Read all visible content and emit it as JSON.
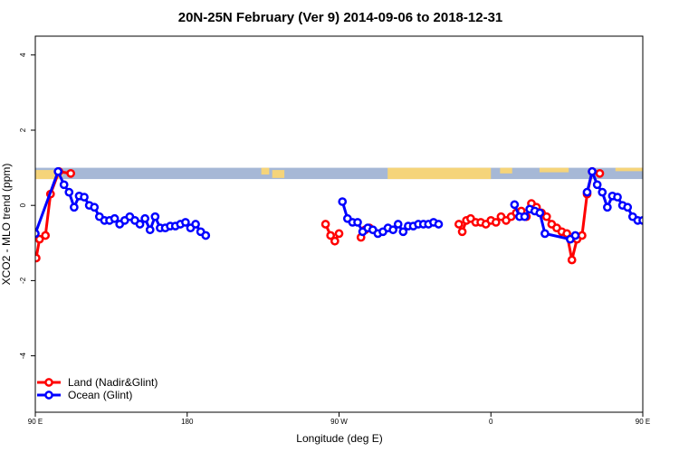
{
  "chart_data": {
    "type": "line",
    "title": "20N-25N February (Ver 9)   2014-09-06 to 2018-12-31",
    "xlabel": "Longitude (deg E)",
    "ylabel": "XCO2 - MLO trend (ppm)",
    "xlim": [
      90,
      450
    ],
    "ylim": [
      -5.5,
      4.5
    ],
    "x_ticks": [
      {
        "value": 90,
        "label": "90 E"
      },
      {
        "value": 180,
        "label": "180"
      },
      {
        "value": 270,
        "label": "90 W"
      },
      {
        "value": 360,
        "label": "0"
      },
      {
        "value": 450,
        "label": "90 E"
      },
      {
        "value": 540,
        "label": "180"
      }
    ],
    "y_ticks": [
      {
        "value": -4,
        "label": "-4"
      },
      {
        "value": -2,
        "label": "-2"
      },
      {
        "value": 0,
        "label": "0"
      },
      {
        "value": 2,
        "label": "2"
      },
      {
        "value": 4,
        "label": "4"
      }
    ],
    "legend_position": "bottom-left",
    "map_strip": {
      "ymin": 0.7,
      "ymax": 1.0,
      "ocean_color": "#a6b8d6",
      "land_color": "#f5d47a"
    },
    "series": [
      {
        "name": "Land (Nadir&Glint)",
        "color": "#ff0000",
        "segments": [
          [
            [
              90.5,
              -1.4
            ],
            [
              92.5,
              -0.9
            ],
            [
              96,
              -0.8
            ],
            [
              99,
              0.3
            ],
            [
              104,
              0.9
            ],
            [
              111,
              0.85
            ]
          ],
          [
            [
              262,
              -0.5
            ],
            [
              265,
              -0.8
            ],
            [
              267.5,
              -0.95
            ],
            [
              270,
              -0.75
            ]
          ],
          [
            [
              283,
              -0.85
            ],
            [
              285.5,
              -0.65
            ],
            [
              288,
              -0.6
            ]
          ],
          [
            [
              341,
              -0.5
            ],
            [
              343,
              -0.7
            ],
            [
              345.5,
              -0.4
            ],
            [
              348,
              -0.35
            ],
            [
              351,
              -0.45
            ],
            [
              354,
              -0.45
            ],
            [
              357,
              -0.5
            ],
            [
              360,
              -0.4
            ],
            [
              363,
              -0.45
            ],
            [
              366,
              -0.3
            ],
            [
              369,
              -0.4
            ],
            [
              372,
              -0.3
            ],
            [
              375,
              -0.2
            ],
            [
              378,
              -0.15
            ],
            [
              381,
              -0.3
            ],
            [
              384,
              0.05
            ],
            [
              387,
              -0.05
            ],
            [
              390,
              -0.2
            ],
            [
              393,
              -0.3
            ],
            [
              396,
              -0.5
            ],
            [
              399,
              -0.6
            ],
            [
              402,
              -0.7
            ],
            [
              405,
              -0.75
            ],
            [
              408,
              -1.45
            ],
            [
              411,
              -0.9
            ],
            [
              414,
              -0.8
            ],
            [
              417,
              0.3
            ],
            [
              420,
              0.9
            ],
            [
              424.5,
              0.85
            ]
          ]
        ]
      },
      {
        "name": "Ocean (Glint)",
        "color": "#0000ff",
        "segments": [
          [
            [
              90,
              -0.75
            ],
            [
              103.5,
              0.9
            ],
            [
              107,
              0.55
            ],
            [
              110,
              0.35
            ],
            [
              113,
              -0.05
            ],
            [
              116,
              0.25
            ],
            [
              119,
              0.22
            ],
            [
              122,
              0.0
            ],
            [
              125,
              -0.05
            ],
            [
              128,
              -0.3
            ],
            [
              131,
              -0.4
            ],
            [
              134,
              -0.4
            ],
            [
              137,
              -0.35
            ],
            [
              140,
              -0.5
            ],
            [
              143,
              -0.4
            ],
            [
              146,
              -0.3
            ],
            [
              149,
              -0.4
            ],
            [
              152,
              -0.5
            ],
            [
              155,
              -0.35
            ],
            [
              158,
              -0.65
            ],
            [
              161,
              -0.3
            ],
            [
              164,
              -0.6
            ],
            [
              167,
              -0.6
            ],
            [
              170,
              -0.55
            ],
            [
              173,
              -0.55
            ],
            [
              176,
              -0.5
            ],
            [
              179,
              -0.45
            ],
            [
              182,
              -0.6
            ],
            [
              185,
              -0.5
            ],
            [
              188,
              -0.7
            ],
            [
              191,
              -0.8
            ]
          ],
          [
            [
              272,
              0.1
            ],
            [
              275,
              -0.35
            ],
            [
              278,
              -0.45
            ],
            [
              281,
              -0.45
            ],
            [
              284,
              -0.7
            ],
            [
              287,
              -0.6
            ],
            [
              290,
              -0.65
            ],
            [
              293,
              -0.75
            ],
            [
              296,
              -0.7
            ],
            [
              299,
              -0.6
            ],
            [
              302,
              -0.65
            ],
            [
              305,
              -0.5
            ],
            [
              308,
              -0.7
            ],
            [
              311,
              -0.55
            ],
            [
              314,
              -0.55
            ],
            [
              317,
              -0.5
            ],
            [
              320,
              -0.5
            ],
            [
              323,
              -0.5
            ],
            [
              326,
              -0.45
            ],
            [
              329,
              -0.5
            ]
          ],
          [
            [
              374,
              0.02
            ],
            [
              377,
              -0.3
            ],
            [
              380,
              -0.3
            ],
            [
              383,
              -0.1
            ],
            [
              386,
              -0.15
            ],
            [
              389,
              -0.2
            ],
            [
              392,
              -0.75
            ],
            [
              407,
              -0.9
            ],
            [
              410,
              -0.8
            ]
          ],
          [
            [
              417,
              0.35
            ],
            [
              420,
              0.9
            ],
            [
              423,
              0.55
            ],
            [
              426,
              0.35
            ],
            [
              429,
              -0.05
            ],
            [
              432,
              0.25
            ],
            [
              435,
              0.22
            ],
            [
              438,
              0.0
            ],
            [
              441,
              -0.05
            ],
            [
              444,
              -0.3
            ],
            [
              447,
              -0.4
            ],
            [
              450,
              -0.4
            ]
          ]
        ]
      }
    ]
  }
}
